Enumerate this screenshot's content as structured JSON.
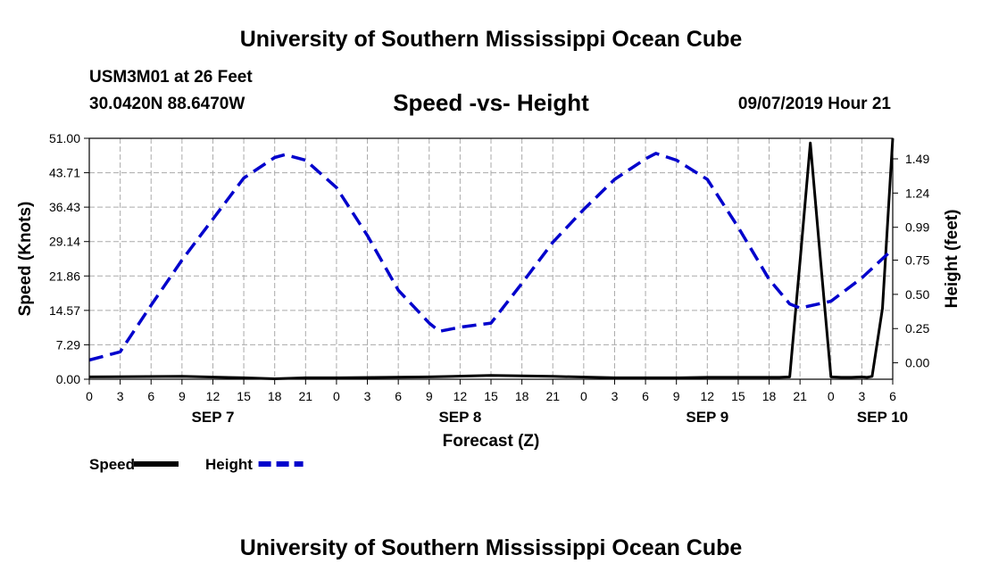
{
  "header": {
    "title": "University of Southern Mississippi Ocean Cube",
    "station": "USM3M01 at 26 Feet",
    "coords": "30.0420N 88.6470W",
    "plot_title": "Speed -vs- Height",
    "datetime": "09/07/2019 Hour 21"
  },
  "footer": {
    "title": "University of Southern Mississippi Ocean Cube"
  },
  "colors": {
    "speed": "#000000",
    "height": "#0000cc",
    "grid": "#aaaaaa"
  },
  "chart_data": {
    "type": "line",
    "title": "Speed -vs- Height",
    "xlabel": "Forecast (Z)",
    "ylabel": "Speed (Knots)",
    "y2label": "Height (feet)",
    "xlim": [
      0,
      78
    ],
    "ylim": [
      0,
      51
    ],
    "y2lim": [
      -0.12,
      1.64
    ],
    "x_ticks": [
      0,
      3,
      6,
      9,
      12,
      15,
      18,
      21,
      24,
      27,
      30,
      33,
      36,
      39,
      42,
      45,
      48,
      51,
      54,
      57,
      60,
      63,
      66,
      69,
      72,
      75,
      78
    ],
    "x_tick_labels": [
      "0",
      "3",
      "6",
      "9",
      "12",
      "15",
      "18",
      "21",
      "0",
      "3",
      "6",
      "9",
      "12",
      "15",
      "18",
      "21",
      "0",
      "3",
      "6",
      "9",
      "12",
      "15",
      "18",
      "21",
      "0",
      "3",
      "6"
    ],
    "day_labels": [
      {
        "x": 12,
        "label": "SEP 7"
      },
      {
        "x": 36,
        "label": "SEP 8"
      },
      {
        "x": 60,
        "label": "SEP 9"
      },
      {
        "x": 77,
        "label": "SEP 10"
      }
    ],
    "y_ticks": [
      0.0,
      7.29,
      14.57,
      21.86,
      29.14,
      36.43,
      43.71,
      51.0
    ],
    "y_tick_labels": [
      "0.00",
      "7.29",
      "14.57",
      "21.86",
      "29.14",
      "36.43",
      "43.71",
      "51.00"
    ],
    "y2_ticks": [
      0.0,
      0.25,
      0.5,
      0.75,
      0.99,
      1.24,
      1.49
    ],
    "y2_tick_labels": [
      "0.00",
      "0.25",
      "0.50",
      "0.75",
      "0.99",
      "1.24",
      "1.49"
    ],
    "series": [
      {
        "name": "Speed",
        "axis": "left",
        "style": "solid",
        "x": [
          0,
          9,
          15,
          18,
          21,
          24,
          33,
          39,
          45,
          51,
          57,
          60,
          63,
          67,
          68,
          69,
          70,
          71,
          72,
          73,
          74,
          75,
          75.5,
          76,
          77,
          78
        ],
        "y": [
          0.5,
          0.6,
          0.3,
          0.1,
          0.3,
          0.3,
          0.5,
          0.8,
          0.6,
          0.3,
          0.3,
          0.4,
          0.4,
          0.4,
          0.5,
          25.0,
          50.0,
          25.0,
          0.5,
          0.4,
          0.4,
          0.5,
          0.4,
          0.6,
          15.0,
          51.0
        ]
      },
      {
        "name": "Height",
        "axis": "right",
        "style": "dashed",
        "x": [
          0,
          3,
          6,
          9,
          12,
          15,
          18,
          19,
          21,
          24,
          27,
          30,
          33,
          34,
          36,
          39,
          42,
          45,
          48,
          51,
          54,
          55,
          57,
          60,
          63,
          66,
          68,
          69,
          72,
          75,
          78
        ],
        "y": [
          0.02,
          0.08,
          0.42,
          0.75,
          1.05,
          1.35,
          1.5,
          1.52,
          1.48,
          1.28,
          0.93,
          0.53,
          0.29,
          0.23,
          0.26,
          0.29,
          0.58,
          0.88,
          1.12,
          1.34,
          1.49,
          1.53,
          1.48,
          1.34,
          0.99,
          0.61,
          0.43,
          0.4,
          0.45,
          0.62,
          0.83
        ]
      }
    ],
    "legend": [
      {
        "label": "Speed",
        "style": "solid"
      },
      {
        "label": "Height",
        "style": "dashed"
      }
    ],
    "legend_position": "bottom-left",
    "grid": true
  }
}
